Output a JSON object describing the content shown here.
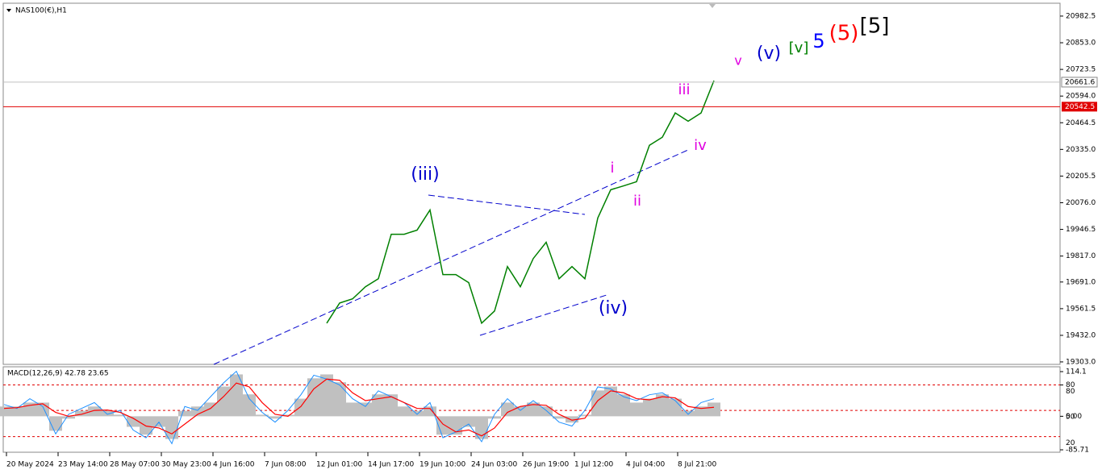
{
  "header": {
    "symbol": "NAS100(€),H1"
  },
  "price_chart": {
    "type": "line",
    "color": "#008000",
    "ylim": [
      19291,
      21041
    ],
    "yticks": [
      20982.5,
      {
        "value": 20853,
        "label": "20853.0"
      },
      20723.5,
      {
        "value": 20594,
        "label": "20594.0"
      },
      20464.5,
      {
        "value": 20335,
        "label": "20335.0"
      },
      20205.5,
      {
        "value": 20076,
        "label": "20076.0"
      },
      19946.5,
      {
        "value": 19817,
        "label": "19817.0"
      },
      {
        "value": 19691,
        "label": "19691.0"
      },
      19561.5,
      {
        "value": 19432,
        "label": "19432.0"
      },
      {
        "value": 19303,
        "label": "19303.0"
      }
    ],
    "categories": [
      "20 May 2024",
      "23 May 14:00",
      "28 May 07:00",
      "30 May 23:00",
      "4 Jun 16:00",
      "7 Jun 08:00",
      "12 Jun 01:00",
      "14 Jun 17:00",
      "19 Jun 10:00",
      "24 Jun 03:00",
      "26 Jun 19:00",
      "1 Jul 12:00",
      "4 Jul 04:00",
      "8 Jul 21:00"
    ],
    "values": [
      null,
      null,
      null,
      null,
      null,
      null,
      null,
      null,
      null,
      null,
      null,
      null,
      null,
      null,
      null,
      null,
      null,
      null,
      null,
      null,
      null,
      null,
      null,
      null,
      null,
      19491,
      19589,
      19609,
      19668,
      19707,
      19923,
      19923,
      19943,
      20041,
      19727,
      19727,
      19688,
      19491,
      19550,
      19766,
      19668,
      19805,
      19884,
      19707,
      19766,
      19707,
      20002,
      20139,
      20158,
      20178,
      20355,
      20394,
      20512,
      20472,
      20512,
      20669
    ],
    "current_price": 20661.6,
    "order_price": 20542.5,
    "annotations": [
      {
        "text": "(iii)",
        "color": "#0000cc"
      },
      {
        "text": "(iv)",
        "color": "#0000cc"
      },
      {
        "text": "i",
        "color": "#e000e0"
      },
      {
        "text": "ii",
        "color": "#e000e0"
      },
      {
        "text": "iii",
        "color": "#e000e0"
      },
      {
        "text": "iv",
        "color": "#e000e0"
      },
      {
        "text": "v",
        "color": "#e000e0"
      },
      {
        "text": "(v)",
        "color": "#0000cc"
      },
      {
        "text": "[v]",
        "color": "#008000"
      },
      {
        "text": "5",
        "color": "#0000ff"
      },
      {
        "text": "(5)",
        "color": "#ff0000"
      },
      {
        "text": "[5]",
        "color": "#000000"
      }
    ]
  },
  "macd_chart": {
    "type": "macd",
    "title": "MACD(12,26,9) 42.78 23.65",
    "ylim": [
      -85.71,
      114.1
    ],
    "yticks": [
      114.1,
      80,
      {
        "value": 0,
        "label": "0.00"
      },
      -85.71
    ],
    "levels": [
      {
        "value": 80,
        "label": "80"
      },
      {
        "value": 15,
        "label": "50"
      },
      {
        "value": -52,
        "label": "20"
      }
    ],
    "histogram": [
      25,
      25,
      35,
      35,
      -37,
      -6,
      14,
      25,
      14,
      4,
      -27,
      -47,
      -27,
      -58,
      14,
      25,
      35,
      76,
      107,
      56,
      4,
      -6,
      4,
      45,
      97,
      107,
      87,
      35,
      35,
      56,
      56,
      25,
      14,
      25,
      -47,
      -47,
      -27,
      -58,
      -6,
      35,
      25,
      35,
      25,
      -6,
      -16,
      4,
      66,
      76,
      56,
      35,
      45,
      56,
      45,
      14,
      25,
      35
    ],
    "signal": [
      20,
      22,
      28,
      32,
      10,
      0,
      5,
      15,
      16,
      10,
      -5,
      -25,
      -30,
      -45,
      -20,
      5,
      20,
      50,
      85,
      75,
      35,
      5,
      0,
      25,
      70,
      95,
      92,
      60,
      40,
      45,
      50,
      35,
      20,
      20,
      -20,
      -40,
      -35,
      -50,
      -30,
      10,
      25,
      30,
      28,
      5,
      -10,
      -5,
      40,
      65,
      60,
      45,
      42,
      50,
      47,
      25,
      20,
      23
    ],
    "line": [
      30,
      20,
      45,
      25,
      -45,
      5,
      20,
      35,
      5,
      15,
      -35,
      -55,
      -15,
      -70,
      25,
      15,
      50,
      85,
      115,
      45,
      10,
      -15,
      15,
      55,
      105,
      95,
      80,
      45,
      25,
      65,
      50,
      35,
      5,
      35,
      -55,
      -40,
      -20,
      -65,
      5,
      45,
      15,
      40,
      15,
      -15,
      -25,
      15,
      75,
      70,
      50,
      40,
      55,
      60,
      40,
      5,
      35,
      45
    ],
    "hist_color": "#c0c0c0",
    "signal_color": "#ff0000",
    "line_color": "#1e90ff"
  }
}
